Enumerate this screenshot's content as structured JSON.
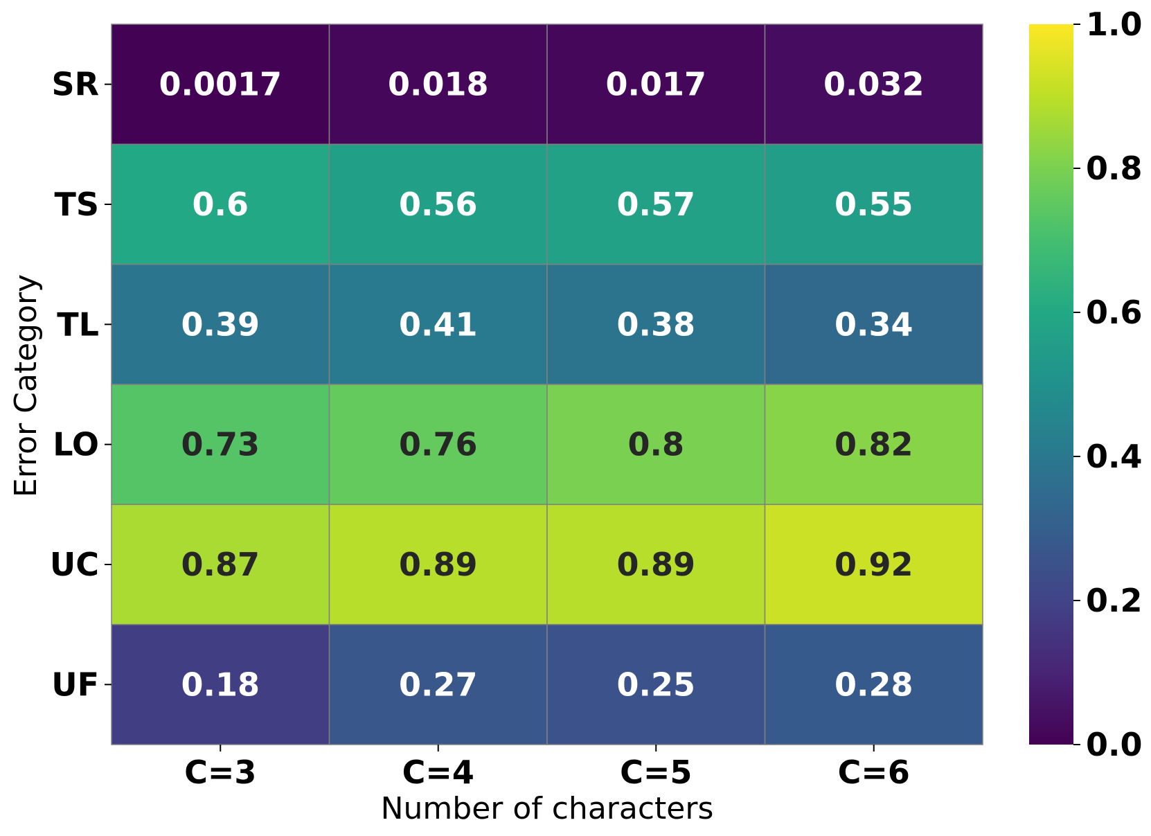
{
  "chart_data": {
    "type": "heatmap",
    "title": "",
    "xlabel": "Number of characters",
    "ylabel": "Error Category",
    "x_categories": [
      "C=3",
      "C=4",
      "C=5",
      "C=6"
    ],
    "y_categories": [
      "SR",
      "TS",
      "TL",
      "LO",
      "UC",
      "UF"
    ],
    "values": [
      [
        0.0017,
        0.018,
        0.017,
        0.032
      ],
      [
        0.6,
        0.56,
        0.57,
        0.55
      ],
      [
        0.39,
        0.41,
        0.38,
        0.34
      ],
      [
        0.73,
        0.76,
        0.8,
        0.82
      ],
      [
        0.87,
        0.89,
        0.89,
        0.92
      ],
      [
        0.18,
        0.27,
        0.25,
        0.28
      ]
    ],
    "value_labels": [
      [
        "0.0017",
        "0.018",
        "0.017",
        "0.032"
      ],
      [
        "0.6",
        "0.56",
        "0.57",
        "0.55"
      ],
      [
        "0.39",
        "0.41",
        "0.38",
        "0.34"
      ],
      [
        "0.73",
        "0.76",
        "0.8",
        "0.82"
      ],
      [
        "0.87",
        "0.89",
        "0.89",
        "0.92"
      ],
      [
        "0.18",
        "0.27",
        "0.25",
        "0.28"
      ]
    ],
    "colormap": "viridis",
    "vmin": 0.0,
    "vmax": 1.0,
    "colorbar_ticks": [
      "0.0",
      "0.2",
      "0.4",
      "0.6",
      "0.8",
      "1.0"
    ],
    "colorbar_tick_values": [
      0.0,
      0.2,
      0.4,
      0.6,
      0.8,
      1.0
    ],
    "grid_line_color": "#808080",
    "annotation_text_light": "#ffffff",
    "annotation_text_dark": "#262626"
  }
}
